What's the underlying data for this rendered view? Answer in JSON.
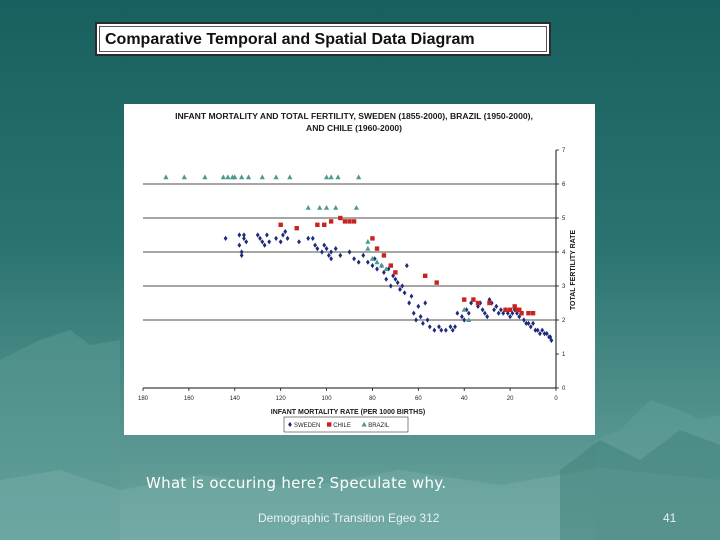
{
  "slide": {
    "title": "Comparative Temporal and Spatial Data Diagram",
    "question": "What is occuring here?  Speculate why.",
    "footer": "Demographic Transition Egeo 312",
    "page_number": "41"
  },
  "chart_data": {
    "type": "scatter",
    "title_line1": "INFANT MORTALITY AND TOTAL FERTILITY, SWEDEN (1855-2000), BRAZIL (1950-2000),",
    "title_line2": "AND CHILE (1960-2000)",
    "xlabel": "INFANT MORTALITY RATE (PER 1000 BIRTHS)",
    "ylabel": "TOTAL FERTILITY RATE",
    "xlim": [
      180,
      0
    ],
    "ylim": [
      0,
      7
    ],
    "x_ticks": [
      "180",
      "160",
      "140",
      "120",
      "100",
      "80",
      "60",
      "40",
      "20",
      "0"
    ],
    "x_tick_values": [
      180,
      160,
      140,
      120,
      100,
      80,
      60,
      40,
      20,
      0
    ],
    "y_ticks": [
      "0",
      "1",
      "2",
      "3",
      "4",
      "5",
      "6",
      "7"
    ],
    "y_tick_values": [
      0,
      1,
      2,
      3,
      4,
      5,
      6,
      7
    ],
    "gridlines_y": [
      2,
      3,
      4,
      5,
      6
    ],
    "legend": [
      {
        "label": "SWEDEN",
        "color": "#1f2a7a",
        "marker": "diamond"
      },
      {
        "label": "CHILE",
        "color": "#c8231e",
        "marker": "square"
      },
      {
        "label": "BRAZIL",
        "color": "#4a9a8e",
        "marker": "triangle"
      }
    ],
    "series": [
      {
        "name": "SWEDEN",
        "color": "#1f2a7a",
        "marker": "diamond",
        "points": [
          [
            144,
            4.4
          ],
          [
            138,
            4.5
          ],
          [
            138,
            4.2
          ],
          [
            136,
            4.5
          ],
          [
            136,
            4.4
          ],
          [
            137,
            4.0
          ],
          [
            137,
            3.9
          ],
          [
            135,
            4.3
          ],
          [
            130,
            4.5
          ],
          [
            129,
            4.4
          ],
          [
            128,
            4.3
          ],
          [
            127,
            4.2
          ],
          [
            126,
            4.5
          ],
          [
            125,
            4.3
          ],
          [
            122,
            4.4
          ],
          [
            120,
            4.3
          ],
          [
            119,
            4.5
          ],
          [
            118,
            4.6
          ],
          [
            117,
            4.4
          ],
          [
            112,
            4.3
          ],
          [
            108,
            4.4
          ],
          [
            106,
            4.4
          ],
          [
            105,
            4.2
          ],
          [
            104,
            4.1
          ],
          [
            102,
            4.0
          ],
          [
            101,
            4.2
          ],
          [
            100,
            4.1
          ],
          [
            98,
            4.0
          ],
          [
            99,
            3.9
          ],
          [
            98,
            3.8
          ],
          [
            96,
            4.1
          ],
          [
            94,
            3.9
          ],
          [
            90,
            4.0
          ],
          [
            88,
            3.8
          ],
          [
            86,
            3.7
          ],
          [
            84,
            3.9
          ],
          [
            82,
            3.7
          ],
          [
            80,
            3.6
          ],
          [
            79,
            3.8
          ],
          [
            78,
            3.5
          ],
          [
            76,
            3.6
          ],
          [
            75,
            3.4
          ],
          [
            74,
            3.2
          ],
          [
            73,
            3.5
          ],
          [
            72,
            3.0
          ],
          [
            71,
            3.3
          ],
          [
            70,
            3.2
          ],
          [
            69,
            3.1
          ],
          [
            68,
            2.9
          ],
          [
            67,
            3.0
          ],
          [
            66,
            2.8
          ],
          [
            65,
            3.6
          ],
          [
            64,
            2.5
          ],
          [
            63,
            2.7
          ],
          [
            62,
            2.2
          ],
          [
            61,
            2.0
          ],
          [
            60,
            2.4
          ],
          [
            59,
            2.1
          ],
          [
            58,
            1.9
          ],
          [
            57,
            2.5
          ],
          [
            56,
            2.0
          ],
          [
            55,
            1.8
          ],
          [
            53,
            1.7
          ],
          [
            51,
            1.8
          ],
          [
            50,
            1.7
          ],
          [
            48,
            1.7
          ],
          [
            46,
            1.8
          ],
          [
            45,
            1.7
          ],
          [
            44,
            1.8
          ],
          [
            43,
            2.2
          ],
          [
            41,
            2.1
          ],
          [
            40,
            2.0
          ],
          [
            39,
            2.3
          ],
          [
            38,
            2.2
          ],
          [
            37,
            2.5
          ],
          [
            36,
            2.6
          ],
          [
            34,
            2.4
          ],
          [
            33,
            2.5
          ],
          [
            32,
            2.3
          ],
          [
            31,
            2.2
          ],
          [
            30,
            2.1
          ],
          [
            29,
            2.6
          ],
          [
            28,
            2.5
          ],
          [
            27,
            2.3
          ],
          [
            26,
            2.4
          ],
          [
            25,
            2.2
          ],
          [
            24,
            2.3
          ],
          [
            23,
            2.2
          ],
          [
            22,
            2.3
          ],
          [
            21,
            2.2
          ],
          [
            20,
            2.1
          ],
          [
            19,
            2.2
          ],
          [
            18,
            2.3
          ],
          [
            17,
            2.2
          ],
          [
            16,
            2.1
          ],
          [
            15,
            2.2
          ],
          [
            14,
            2.0
          ],
          [
            13,
            1.9
          ],
          [
            12,
            1.9
          ],
          [
            11,
            1.8
          ],
          [
            10,
            1.9
          ],
          [
            9,
            1.7
          ],
          [
            8,
            1.7
          ],
          [
            7,
            1.6
          ],
          [
            6,
            1.7
          ],
          [
            5,
            1.6
          ],
          [
            4,
            1.6
          ],
          [
            3,
            1.5
          ],
          [
            2.5,
            1.5
          ],
          [
            2,
            1.4
          ]
        ]
      },
      {
        "name": "CHILE",
        "color": "#c8231e",
        "marker": "square",
        "points": [
          [
            120,
            4.8
          ],
          [
            113,
            4.7
          ],
          [
            104,
            4.8
          ],
          [
            101,
            4.8
          ],
          [
            98,
            4.9
          ],
          [
            94,
            5.0
          ],
          [
            92,
            4.9
          ],
          [
            90,
            4.9
          ],
          [
            88,
            4.9
          ],
          [
            80,
            4.4
          ],
          [
            78,
            4.1
          ],
          [
            75,
            3.9
          ],
          [
            72,
            3.6
          ],
          [
            70,
            3.4
          ],
          [
            57,
            3.3
          ],
          [
            52,
            3.1
          ],
          [
            40,
            2.6
          ],
          [
            36,
            2.6
          ],
          [
            34,
            2.5
          ],
          [
            29,
            2.5
          ],
          [
            22,
            2.3
          ],
          [
            20,
            2.3
          ],
          [
            18,
            2.4
          ],
          [
            17,
            2.3
          ],
          [
            16,
            2.3
          ],
          [
            15,
            2.2
          ],
          [
            12,
            2.2
          ],
          [
            10,
            2.2
          ]
        ]
      },
      {
        "name": "BRAZIL",
        "color": "#4a9a8e",
        "marker": "triangle",
        "points": [
          [
            170,
            6.2
          ],
          [
            162,
            6.2
          ],
          [
            153,
            6.2
          ],
          [
            145,
            6.2
          ],
          [
            143,
            6.2
          ],
          [
            141,
            6.2
          ],
          [
            140,
            6.2
          ],
          [
            137,
            6.2
          ],
          [
            134,
            6.2
          ],
          [
            128,
            6.2
          ],
          [
            122,
            6.2
          ],
          [
            116,
            6.2
          ],
          [
            108,
            5.3
          ],
          [
            103,
            5.3
          ],
          [
            100,
            5.3
          ],
          [
            96,
            5.3
          ],
          [
            87,
            5.3
          ],
          [
            86,
            6.2
          ],
          [
            100,
            6.2
          ],
          [
            95,
            6.2
          ],
          [
            98,
            6.2
          ],
          [
            82,
            4.3
          ],
          [
            82,
            4.1
          ],
          [
            80,
            3.8
          ],
          [
            78,
            3.7
          ],
          [
            76,
            3.6
          ],
          [
            74,
            3.5
          ],
          [
            40,
            2.3
          ],
          [
            38,
            2.0
          ]
        ]
      }
    ]
  }
}
